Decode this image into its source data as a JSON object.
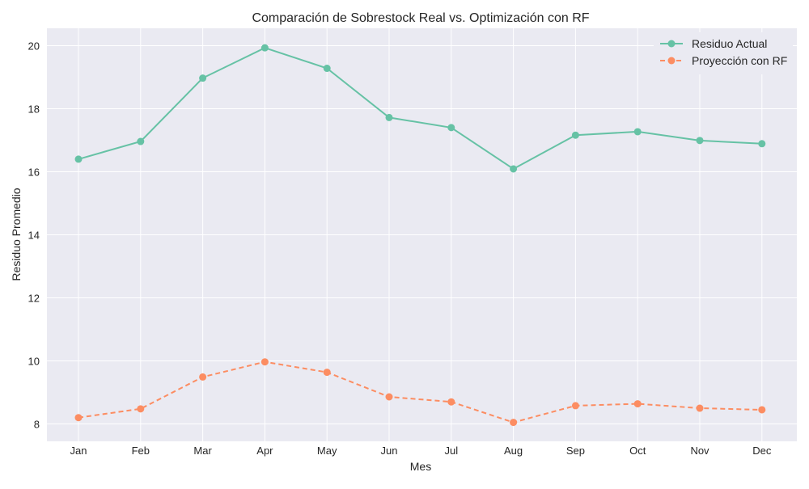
{
  "chart_data": {
    "type": "line",
    "title": "Comparación de Sobrestock Real vs. Optimización con RF",
    "xlabel": "Mes",
    "ylabel": "Residuo Promedio",
    "categories": [
      "Jan",
      "Feb",
      "Mar",
      "Apr",
      "May",
      "Jun",
      "Jul",
      "Aug",
      "Sep",
      "Oct",
      "Nov",
      "Dec"
    ],
    "ylim": [
      7.45,
      20.55
    ],
    "yticks": [
      8,
      10,
      12,
      14,
      16,
      18,
      20
    ],
    "grid": true,
    "legend_position": "top-right",
    "series": [
      {
        "name": "Residuo Actual",
        "color": "#66c2a5",
        "line_style": "solid",
        "marker": "circle",
        "values": [
          16.4,
          16.96,
          18.97,
          19.93,
          19.28,
          17.72,
          17.4,
          16.09,
          17.16,
          17.27,
          16.99,
          16.89
        ]
      },
      {
        "name": "Proyección con RF",
        "color": "#fc8d62",
        "line_style": "dashed",
        "marker": "circle",
        "values": [
          8.2,
          8.48,
          9.49,
          9.97,
          9.64,
          8.86,
          8.7,
          8.05,
          8.58,
          8.64,
          8.5,
          8.45
        ]
      }
    ]
  }
}
